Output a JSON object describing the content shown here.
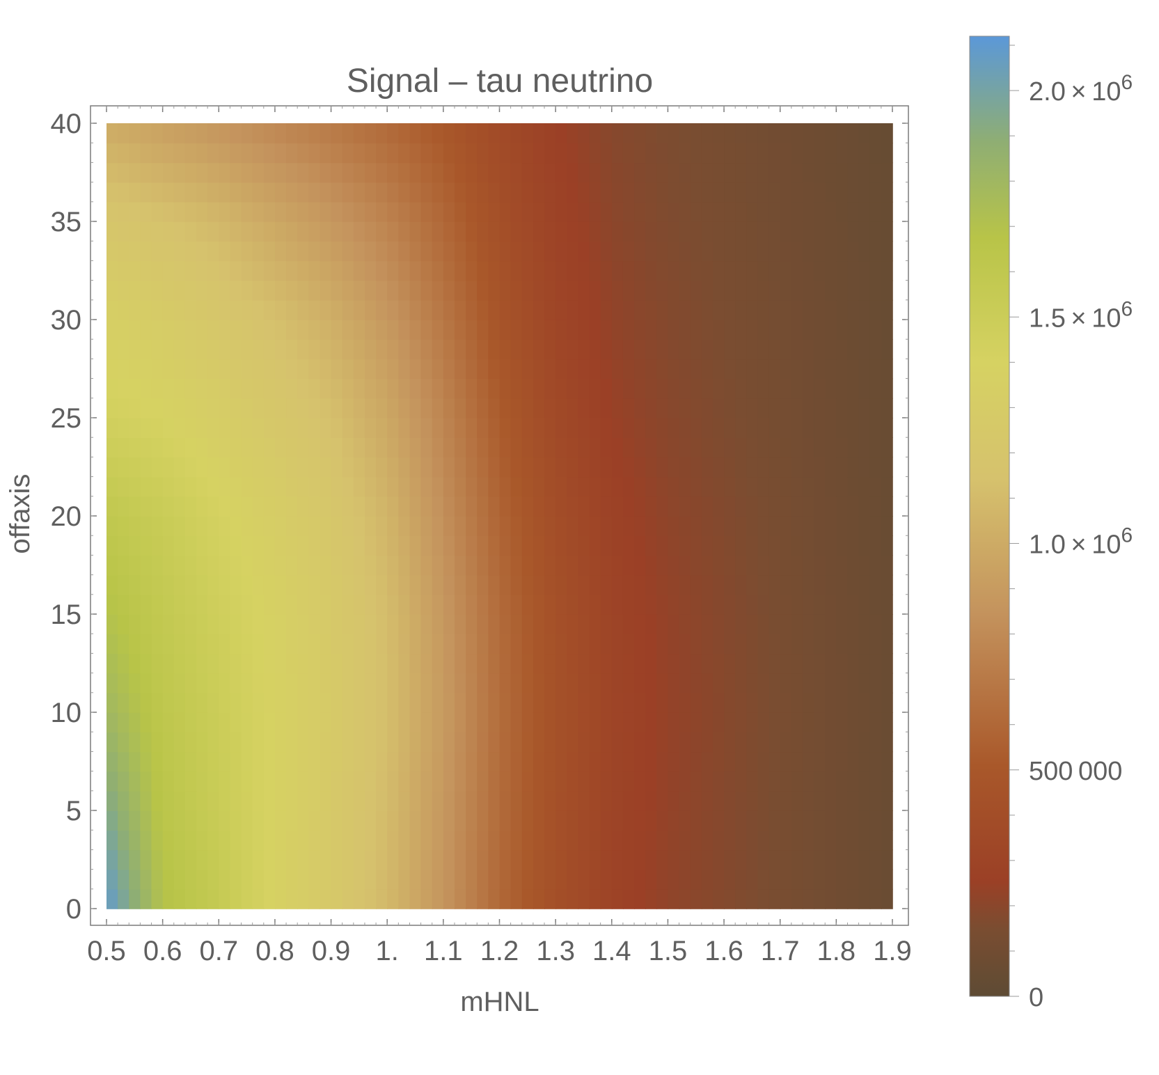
{
  "chart_data": {
    "type": "heatmap",
    "title": "Signal – tau neutrino",
    "xlabel": "mHNL",
    "ylabel": "offaxis",
    "xlim": [
      0.5,
      1.9
    ],
    "ylim": [
      0,
      40
    ],
    "x_ticks": [
      0.5,
      0.6,
      0.7,
      0.8,
      0.9,
      1.0,
      1.1,
      1.2,
      1.3,
      1.4,
      1.5,
      1.6,
      1.7,
      1.8,
      1.9
    ],
    "x_tick_labels": [
      "0.5",
      "0.6",
      "0.7",
      "0.8",
      "0.9",
      "1.",
      "1.1",
      "1.2",
      "1.3",
      "1.4",
      "1.5",
      "1.6",
      "1.7",
      "1.8",
      "1.9"
    ],
    "y_ticks": [
      0,
      5,
      10,
      15,
      20,
      25,
      30,
      35,
      40
    ],
    "y_tick_labels": [
      "0",
      "5",
      "10",
      "15",
      "20",
      "25",
      "30",
      "35",
      "40"
    ],
    "x": [
      0.5,
      0.6,
      0.7,
      0.8,
      0.9,
      1.0,
      1.1,
      1.2,
      1.3,
      1.4,
      1.5,
      1.6,
      1.7,
      1.8,
      1.9
    ],
    "y": [
      0,
      5,
      10,
      15,
      20,
      25,
      30,
      35,
      40
    ],
    "z_units_note_absent": null,
    "z": [
      [
        2100000,
        1700000,
        1560000,
        1380000,
        1250000,
        1080000,
        860000,
        600000,
        420000,
        290000,
        220000,
        180000,
        140000,
        100000,
        60000
      ],
      [
        1950000,
        1650000,
        1520000,
        1380000,
        1260000,
        1100000,
        880000,
        620000,
        430000,
        300000,
        230000,
        185000,
        140000,
        100000,
        60000
      ],
      [
        1800000,
        1620000,
        1500000,
        1380000,
        1270000,
        1120000,
        900000,
        630000,
        440000,
        310000,
        235000,
        190000,
        145000,
        105000,
        60000
      ],
      [
        1700000,
        1580000,
        1470000,
        1370000,
        1260000,
        1110000,
        880000,
        620000,
        430000,
        300000,
        230000,
        185000,
        140000,
        100000,
        60000
      ],
      [
        1600000,
        1520000,
        1420000,
        1320000,
        1220000,
        1060000,
        830000,
        580000,
        400000,
        280000,
        215000,
        175000,
        135000,
        95000,
        55000
      ],
      [
        1440000,
        1400000,
        1320000,
        1230000,
        1130000,
        980000,
        770000,
        530000,
        360000,
        250000,
        195000,
        160000,
        125000,
        90000,
        55000
      ],
      [
        1350000,
        1300000,
        1220000,
        1130000,
        1030000,
        880000,
        690000,
        470000,
        320000,
        225000,
        180000,
        150000,
        120000,
        85000,
        50000
      ],
      [
        1200000,
        1150000,
        1080000,
        980000,
        880000,
        760000,
        600000,
        420000,
        290000,
        205000,
        165000,
        140000,
        110000,
        80000,
        50000
      ],
      [
        1000000,
        930000,
        860000,
        780000,
        700000,
        610000,
        500000,
        360000,
        260000,
        190000,
        155000,
        130000,
        105000,
        75000,
        45000
      ]
    ],
    "colorbar": {
      "range": [
        0,
        2120000
      ],
      "ticks": [
        0,
        500000,
        1000000,
        1500000,
        2000000
      ],
      "tick_labels": [
        {
          "mantissa": "0",
          "exponent": ""
        },
        {
          "mantissa": "500 000",
          "exponent": ""
        },
        {
          "mantissa": "1.0 × 10",
          "exponent": "6"
        },
        {
          "mantissa": "1.5 × 10",
          "exponent": "6"
        },
        {
          "mantissa": "2.0 × 10",
          "exponent": "6"
        }
      ],
      "colors": [
        "#5e4b34",
        "#7a4d31",
        "#9b4026",
        "#a9582a",
        "#c4935d",
        "#d6c26d",
        "#d6d262",
        "#b8c448",
        "#8fae73",
        "#5b98d8"
      ],
      "stops": [
        0,
        0.07,
        0.12,
        0.24,
        0.4,
        0.54,
        0.66,
        0.79,
        0.89,
        1.0
      ]
    },
    "grid": false,
    "legend": "colorbar-right",
    "colors": {
      "frame": "#7a7a7a",
      "text": "#5f5f5f"
    }
  }
}
